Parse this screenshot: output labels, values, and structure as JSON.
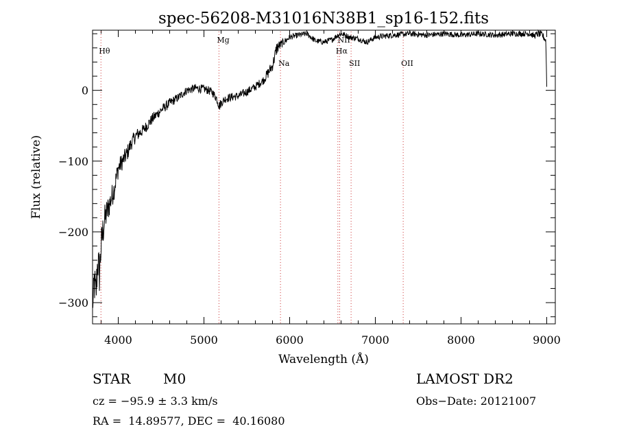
{
  "chart_data": {
    "type": "line",
    "title": "spec-56208-M31016N38B1_sp16-152.fits",
    "xlabel": "Wavelength (Å)",
    "ylabel": "Flux (relative)",
    "xlim": [
      3700,
      9100
    ],
    "ylim": [
      -330,
      85
    ],
    "xticks": [
      4000,
      5000,
      6000,
      7000,
      8000,
      9000
    ],
    "yticks": [
      -300,
      -200,
      -100,
      0
    ],
    "grid": false,
    "legend": "none",
    "line_color": "#000000",
    "marker_color": "#cc3333",
    "spectral_lines": [
      {
        "label": "Hθ",
        "wavelength": 3798,
        "label_level": "upper"
      },
      {
        "label": "Mg",
        "wavelength": 5175,
        "label_level": "top"
      },
      {
        "label": "Na",
        "wavelength": 5893,
        "label_level": "lower"
      },
      {
        "label": "NII",
        "wavelength": 6584,
        "label_level": "top"
      },
      {
        "label": "Hα",
        "wavelength": 6563,
        "label_level": "upper"
      },
      {
        "label": "SII",
        "wavelength": 6717,
        "label_level": "lower"
      },
      {
        "label": "OII",
        "wavelength": 7325,
        "label_level": "lower"
      }
    ],
    "series": [
      {
        "x": [
          3700,
          3720,
          3740,
          3760,
          3780,
          3800,
          3830,
          3860,
          3900,
          3950,
          4000,
          4050,
          4100,
          4150,
          4200,
          4300,
          4400,
          4500,
          4600,
          4700,
          4800,
          4900,
          5000,
          5050,
          5100,
          5150,
          5180,
          5200,
          5250,
          5300,
          5400,
          5500,
          5600,
          5700,
          5750,
          5800,
          5850,
          5900,
          6000,
          6100,
          6200,
          6300,
          6400,
          6500,
          6560,
          6600,
          6650,
          6700,
          6800,
          6900,
          7000,
          7200,
          7400,
          7600,
          7800,
          8000,
          8200,
          8400,
          8600,
          8700,
          8800,
          8850,
          8900,
          8950,
          8990,
          9000
        ],
        "y": [
          -310,
          -270,
          -290,
          -240,
          -260,
          -220,
          -190,
          -175,
          -160,
          -140,
          -110,
          -100,
          -90,
          -75,
          -65,
          -55,
          -40,
          -28,
          -18,
          -10,
          0,
          3,
          2,
          0,
          -3,
          -12,
          -22,
          -18,
          -12,
          -10,
          -8,
          -2,
          5,
          15,
          25,
          35,
          60,
          65,
          75,
          78,
          80,
          70,
          68,
          72,
          78,
          80,
          78,
          75,
          73,
          68,
          75,
          78,
          80,
          78,
          80,
          78,
          80,
          78,
          80,
          80,
          80,
          77,
          80,
          78,
          70,
          5
        ],
        "noise": [
          8,
          30,
          30,
          30,
          30,
          25,
          25,
          20,
          18,
          16,
          14,
          12,
          12,
          10,
          10,
          8,
          8,
          7,
          7,
          6,
          6,
          6,
          6,
          6,
          6,
          6,
          8,
          6,
          6,
          6,
          6,
          6,
          6,
          6,
          8,
          8,
          10,
          6,
          4,
          4,
          4,
          4,
          4,
          4,
          4,
          4,
          4,
          4,
          4,
          4,
          4,
          4,
          4,
          4,
          4,
          4,
          4,
          4,
          4,
          4,
          4,
          4,
          5,
          5,
          5,
          0
        ]
      }
    ]
  },
  "info": {
    "object_class": "STAR",
    "subclass": "M0",
    "survey": "LAMOST DR2",
    "velocity": "cz = −95.9 ± 3.3 km/s",
    "obs_date": "Obs−Date: 20121007",
    "coords": "RA =  14.89577, DEC =  40.16080"
  }
}
